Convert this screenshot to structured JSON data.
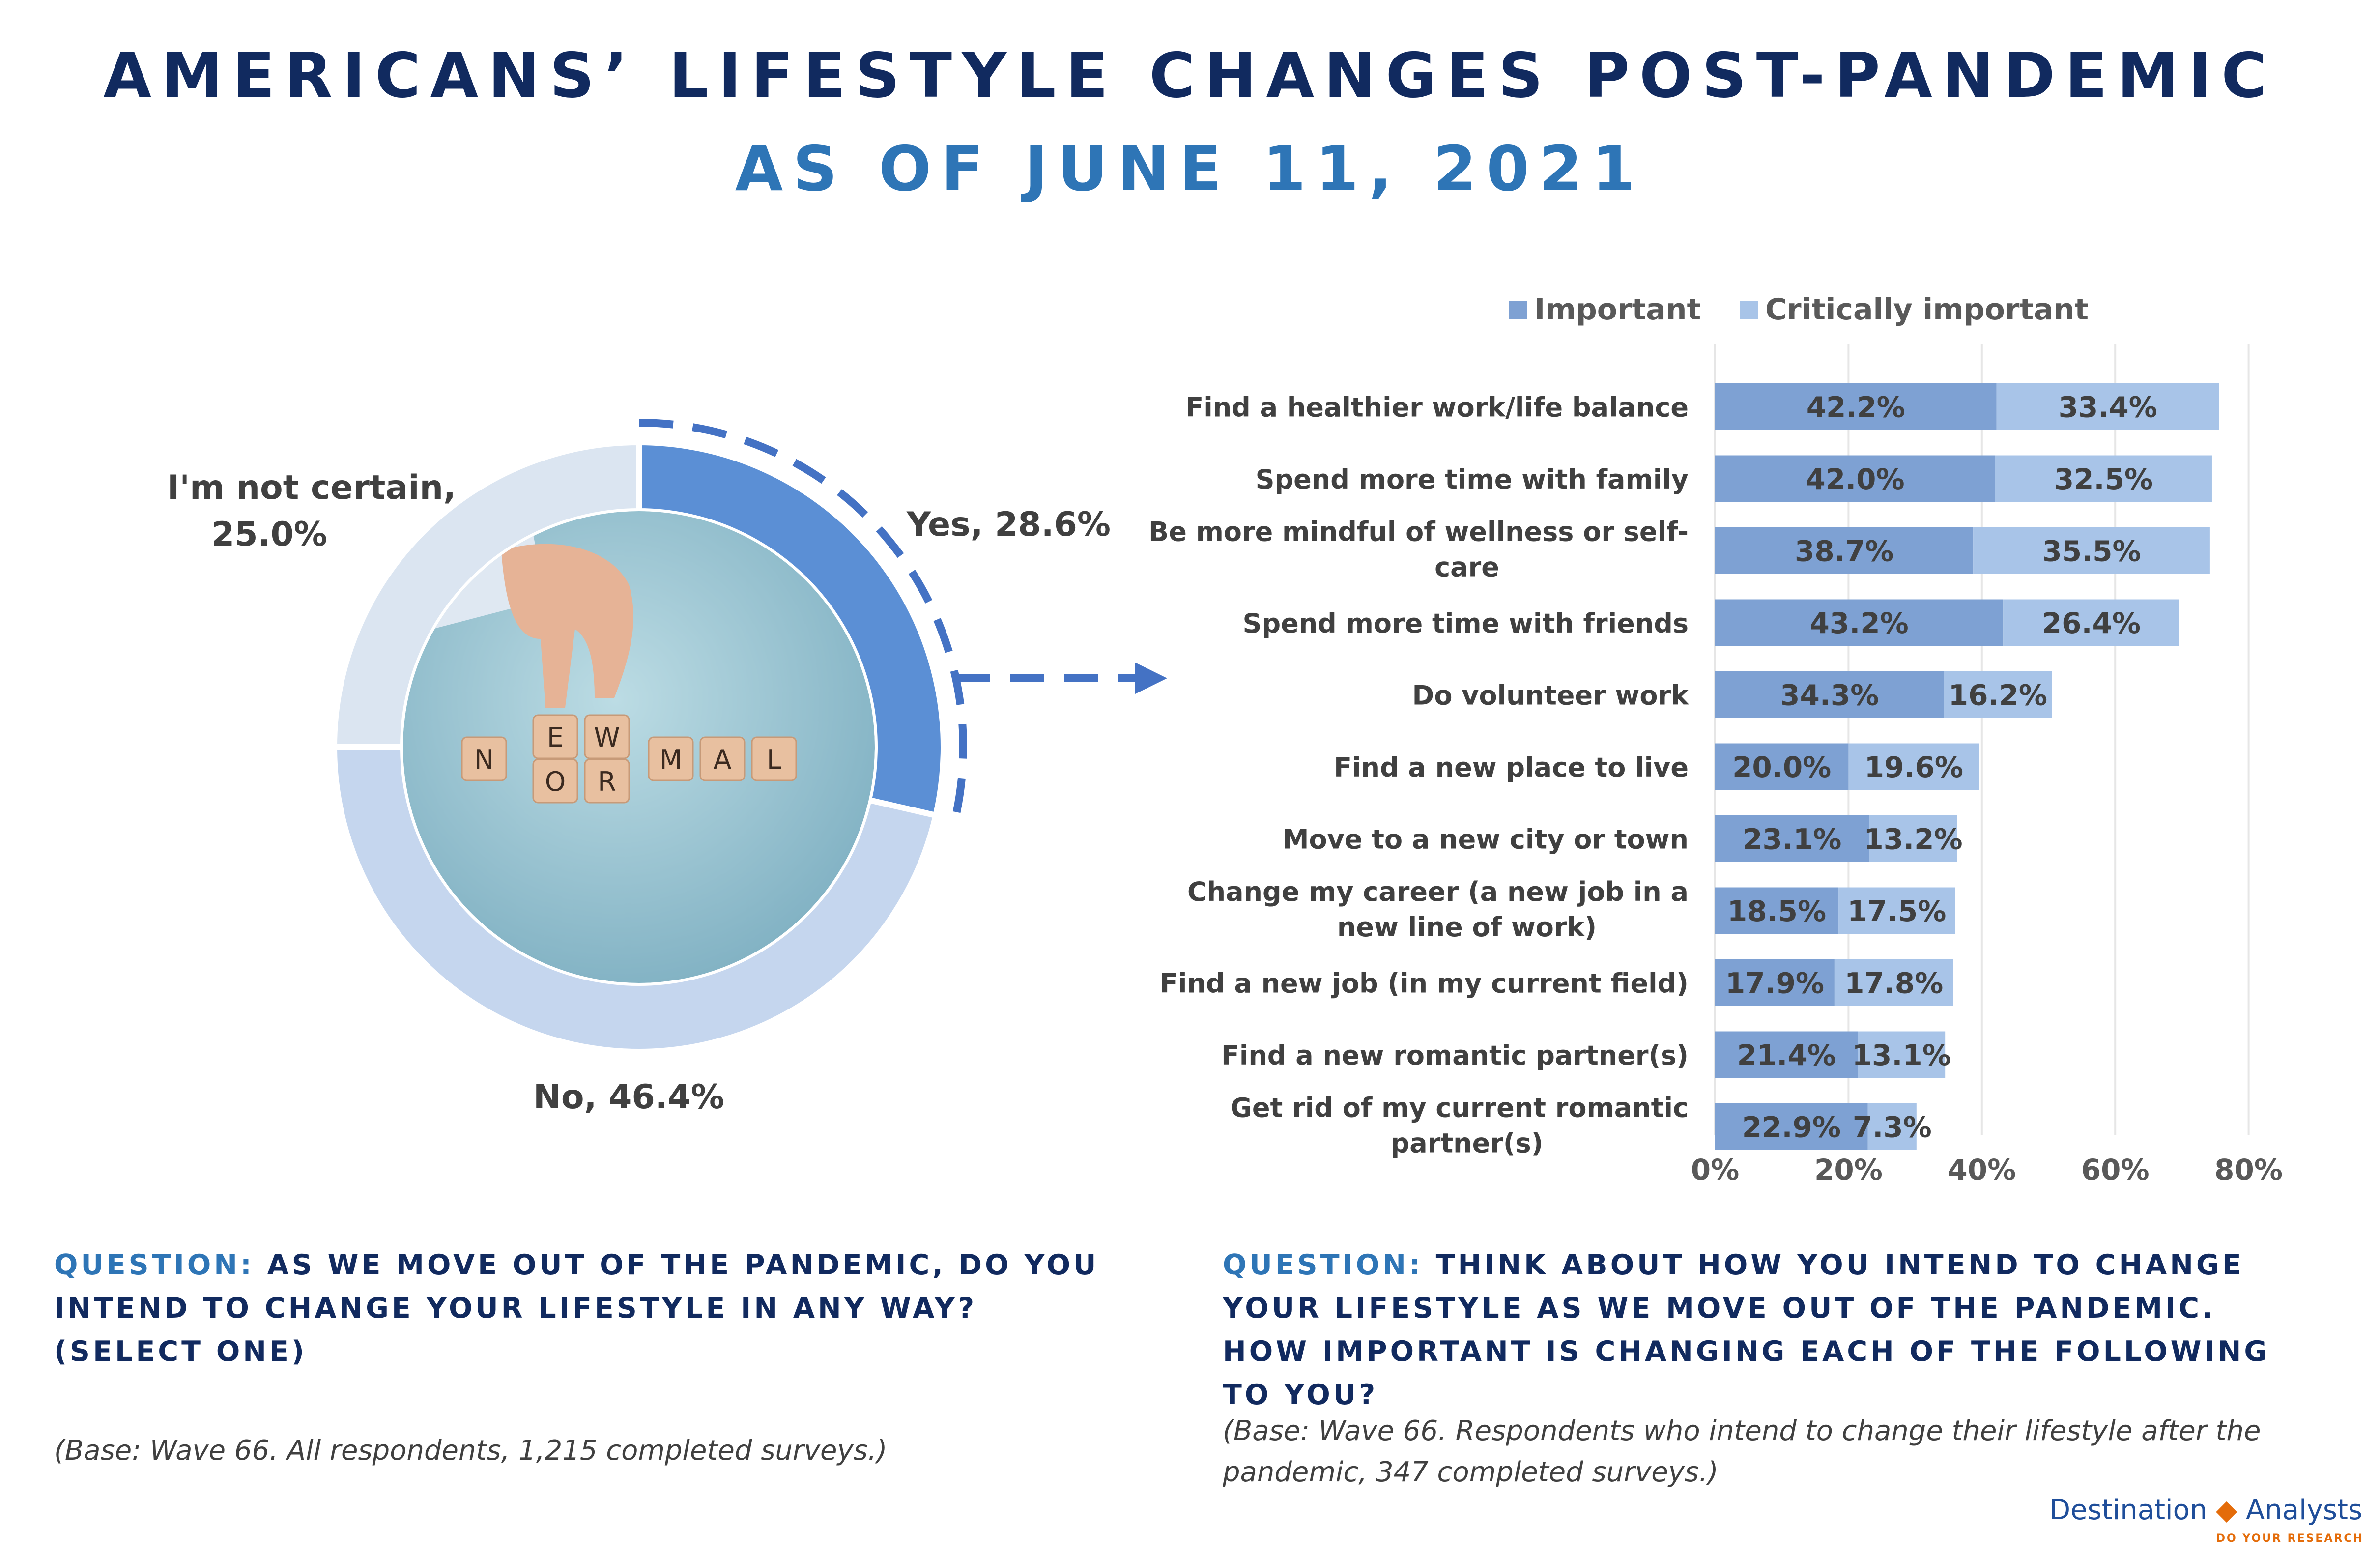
{
  "title": "AMERICANS’ LIFESTYLE CHANGES POST-PANDEMIC",
  "subtitle": "AS OF JUNE 11, 2021",
  "chart_data": [
    {
      "type": "pie",
      "slices": [
        {
          "label": "Yes",
          "value": 28.6,
          "display": "Yes, 28.6%",
          "color": "#5b8fd5"
        },
        {
          "label": "No",
          "value": 46.4,
          "display": "No, 46.4%",
          "color": "#c5d6ee"
        },
        {
          "label": "I'm not certain",
          "value": 25.0,
          "display_lines": [
            "I'm not certain,",
            "25.0%"
          ],
          "color": "#dbe5f1"
        }
      ],
      "center_image_letters": [
        "N",
        "E",
        "W",
        "O",
        "R",
        "M",
        "A",
        "L"
      ],
      "question_label": "QUESTION:",
      "question_text": "AS WE MOVE OUT OF THE PANDEMIC, DO YOU INTEND TO CHANGE YOUR LIFESTYLE IN ANY WAY? (SELECT ONE)",
      "base_note": "(Base: Wave 66.  All respondents, 1,215 completed surveys.)"
    },
    {
      "type": "bar",
      "orientation": "horizontal",
      "stacked": true,
      "categories": [
        [
          "Find a healthier work/life balance"
        ],
        [
          "Spend more time with family"
        ],
        [
          "Be more mindful of wellness or self-",
          "care"
        ],
        [
          "Spend more time with friends"
        ],
        [
          "Do volunteer work"
        ],
        [
          "Find a new place to live"
        ],
        [
          "Move to a new city or town"
        ],
        [
          "Change my career (a new job in a",
          "new line of work)"
        ],
        [
          "Find a new job (in my current field)"
        ],
        [
          "Find a new romantic partner(s)"
        ],
        [
          "Get rid of my current romantic",
          "partner(s)"
        ]
      ],
      "series": [
        {
          "name": "Important",
          "color": "#7ea1d3",
          "values": [
            42.2,
            42.0,
            38.7,
            43.2,
            34.3,
            20.0,
            23.1,
            18.5,
            17.9,
            21.4,
            22.9
          ]
        },
        {
          "name": "Critically important",
          "color": "#a8c4e8",
          "values": [
            33.4,
            32.5,
            35.5,
            26.4,
            16.2,
            19.6,
            13.2,
            17.5,
            17.8,
            13.1,
            7.3
          ]
        }
      ],
      "xlim": [
        0,
        80
      ],
      "xticks": [
        0,
        20,
        40,
        60,
        80
      ],
      "tick_suffix": "%",
      "legend_position": "top",
      "question_label": "QUESTION:",
      "question_text": "THINK ABOUT HOW YOU INTEND TO CHANGE YOUR LIFESTYLE AS WE MOVE OUT OF THE PANDEMIC. HOW IMPORTANT IS CHANGING EACH OF THE FOLLOWING TO YOU?",
      "base_note": "(Base: Wave 66. Respondents who intend to change their lifestyle after the pandemic, 347 completed surveys.)"
    }
  ],
  "logo": {
    "brand": "Destination",
    "brand2": "Analysts",
    "tagline": "DO YOUR RESEARCH"
  }
}
